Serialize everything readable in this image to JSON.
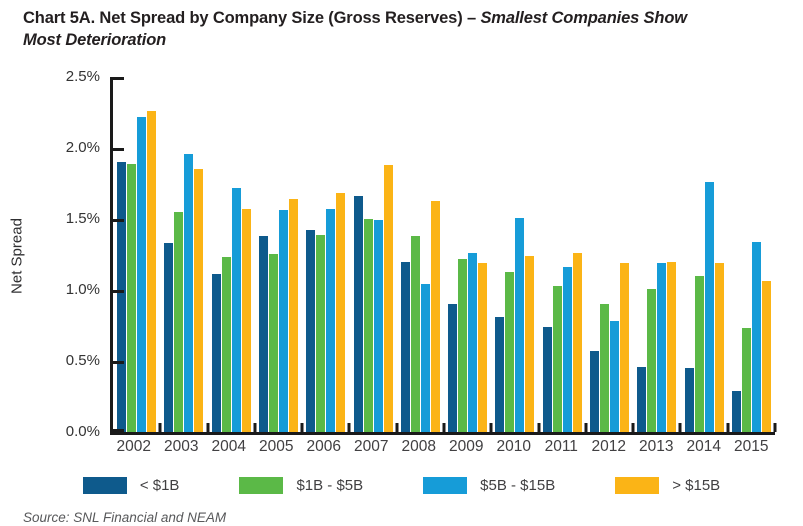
{
  "title": {
    "prefix": "Chart 5A. Net Spread by Company Size (Gross Reserves) – ",
    "emphasis_line1": "Smallest Companies Show",
    "emphasis_line2": "Most Deterioration"
  },
  "chart_data": {
    "type": "bar",
    "title": "Chart 5A. Net Spread by Company Size (Gross Reserves) – Smallest Companies Show Most Deterioration",
    "ylabel": "Net Spread",
    "xlabel": "",
    "ylim": [
      0,
      2.5
    ],
    "ytick_labels": [
      "2.5%",
      "2.0%",
      "1.5%",
      "1.0%",
      "0.5%",
      "0.0%"
    ],
    "grid": false,
    "legend_position": "bottom",
    "categories": [
      "2002",
      "2003",
      "2004",
      "2005",
      "2006",
      "2007",
      "2008",
      "2009",
      "2010",
      "2011",
      "2012",
      "2013",
      "2014",
      "2015"
    ],
    "series": [
      {
        "name": "< $1B",
        "color": "#0E5A8C",
        "values": [
          1.9,
          1.33,
          1.11,
          1.38,
          1.42,
          1.66,
          1.2,
          0.9,
          0.81,
          0.74,
          0.57,
          0.46,
          0.45,
          0.29
        ]
      },
      {
        "name": "$1B - $5B",
        "color": "#5BB947",
        "values": [
          1.89,
          1.55,
          1.23,
          1.25,
          1.39,
          1.5,
          1.38,
          1.22,
          1.13,
          1.03,
          0.9,
          1.01,
          1.1,
          0.73
        ]
      },
      {
        "name": "$5B - $15B",
        "color": "#169CD8",
        "values": [
          2.22,
          1.96,
          1.72,
          1.56,
          1.57,
          1.49,
          1.04,
          1.26,
          1.51,
          1.16,
          0.78,
          1.19,
          1.76,
          1.34
        ]
      },
      {
        "name": "> $15B",
        "color": "#FBB416",
        "values": [
          2.26,
          1.85,
          1.57,
          1.64,
          1.68,
          1.88,
          1.63,
          1.19,
          1.24,
          1.26,
          1.19,
          1.2,
          1.19,
          1.06
        ]
      }
    ]
  },
  "source": "Source: SNL Financial and NEAM",
  "colors": {
    "axis": "#1A1A1A",
    "tick_label": "#333333",
    "category_label": "#414042",
    "title_text": "#231F20",
    "source_text": "#58595B"
  }
}
